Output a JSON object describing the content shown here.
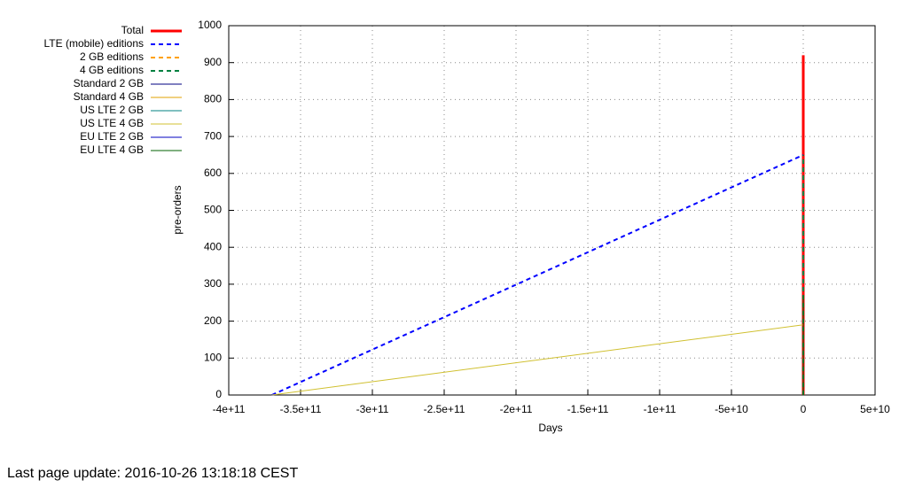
{
  "chart_data": {
    "type": "line",
    "xlabel": "Days",
    "ylabel": "pre-orders",
    "xlim": [
      -400000000000,
      50000000000
    ],
    "xticks": [
      {
        "value": -400000000000,
        "label": "-4e+11"
      },
      {
        "value": -350000000000,
        "label": "-3.5e+11"
      },
      {
        "value": -300000000000,
        "label": "-3e+11"
      },
      {
        "value": -250000000000,
        "label": "-2.5e+11"
      },
      {
        "value": -200000000000,
        "label": "-2e+11"
      },
      {
        "value": -150000000000,
        "label": "-1.5e+11"
      },
      {
        "value": -100000000000,
        "label": "-1e+11"
      },
      {
        "value": -50000000000,
        "label": "-5e+10"
      },
      0,
      {
        "value": 50000000000,
        "label": "5e+10"
      }
    ],
    "ylim": [
      0,
      1000
    ],
    "yticks": [
      0,
      100,
      200,
      300,
      400,
      500,
      600,
      700,
      800,
      900,
      1000
    ],
    "grid": true,
    "legend": "outside-top-left",
    "series": [
      {
        "name": "Total",
        "color": "#ff0000",
        "line_width": 3,
        "dash": false,
        "x": [
          0,
          0
        ],
        "values": [
          0,
          920
        ]
      },
      {
        "name": "LTE (mobile) editions",
        "color": "#0000ff",
        "line_width": 2,
        "dash": true,
        "x": [
          -370000000000,
          0
        ],
        "values": [
          0,
          650
        ]
      },
      {
        "name": "2 GB editions",
        "color": "#ffa000",
        "line_width": 2,
        "dash": true,
        "x": [
          0,
          0
        ],
        "values": [
          0,
          270
        ]
      },
      {
        "name": "4 GB editions",
        "color": "#008040",
        "line_width": 2,
        "dash": true,
        "x": [
          0,
          0
        ],
        "values": [
          0,
          650
        ]
      },
      {
        "name": "Standard 2 GB",
        "color": "#000080",
        "line_width": 1,
        "dash": false,
        "x": [
          0,
          0
        ],
        "values": [
          0,
          80
        ]
      },
      {
        "name": "Standard 4 GB",
        "color": "#e0a000",
        "line_width": 1,
        "dash": false,
        "x": [
          0,
          0
        ],
        "values": [
          0,
          190
        ]
      },
      {
        "name": "US LTE 2 GB",
        "color": "#008080",
        "line_width": 1,
        "dash": false,
        "x": [
          0,
          0
        ],
        "values": [
          0,
          100
        ]
      },
      {
        "name": "US LTE 4 GB",
        "color": "#d0c030",
        "line_width": 1,
        "dash": false,
        "x": [
          -370000000000,
          0
        ],
        "values": [
          0,
          190
        ]
      },
      {
        "name": "EU LTE 2 GB",
        "color": "#0000c0",
        "line_width": 1,
        "dash": false,
        "x": [
          0,
          0
        ],
        "values": [
          0,
          90
        ]
      },
      {
        "name": "EU LTE 4 GB",
        "color": "#006000",
        "line_width": 1,
        "dash": false,
        "x": [
          0,
          0
        ],
        "values": [
          0,
          270
        ]
      }
    ]
  },
  "footer": "Last page update: 2016-10-26 13:18:18 CEST"
}
